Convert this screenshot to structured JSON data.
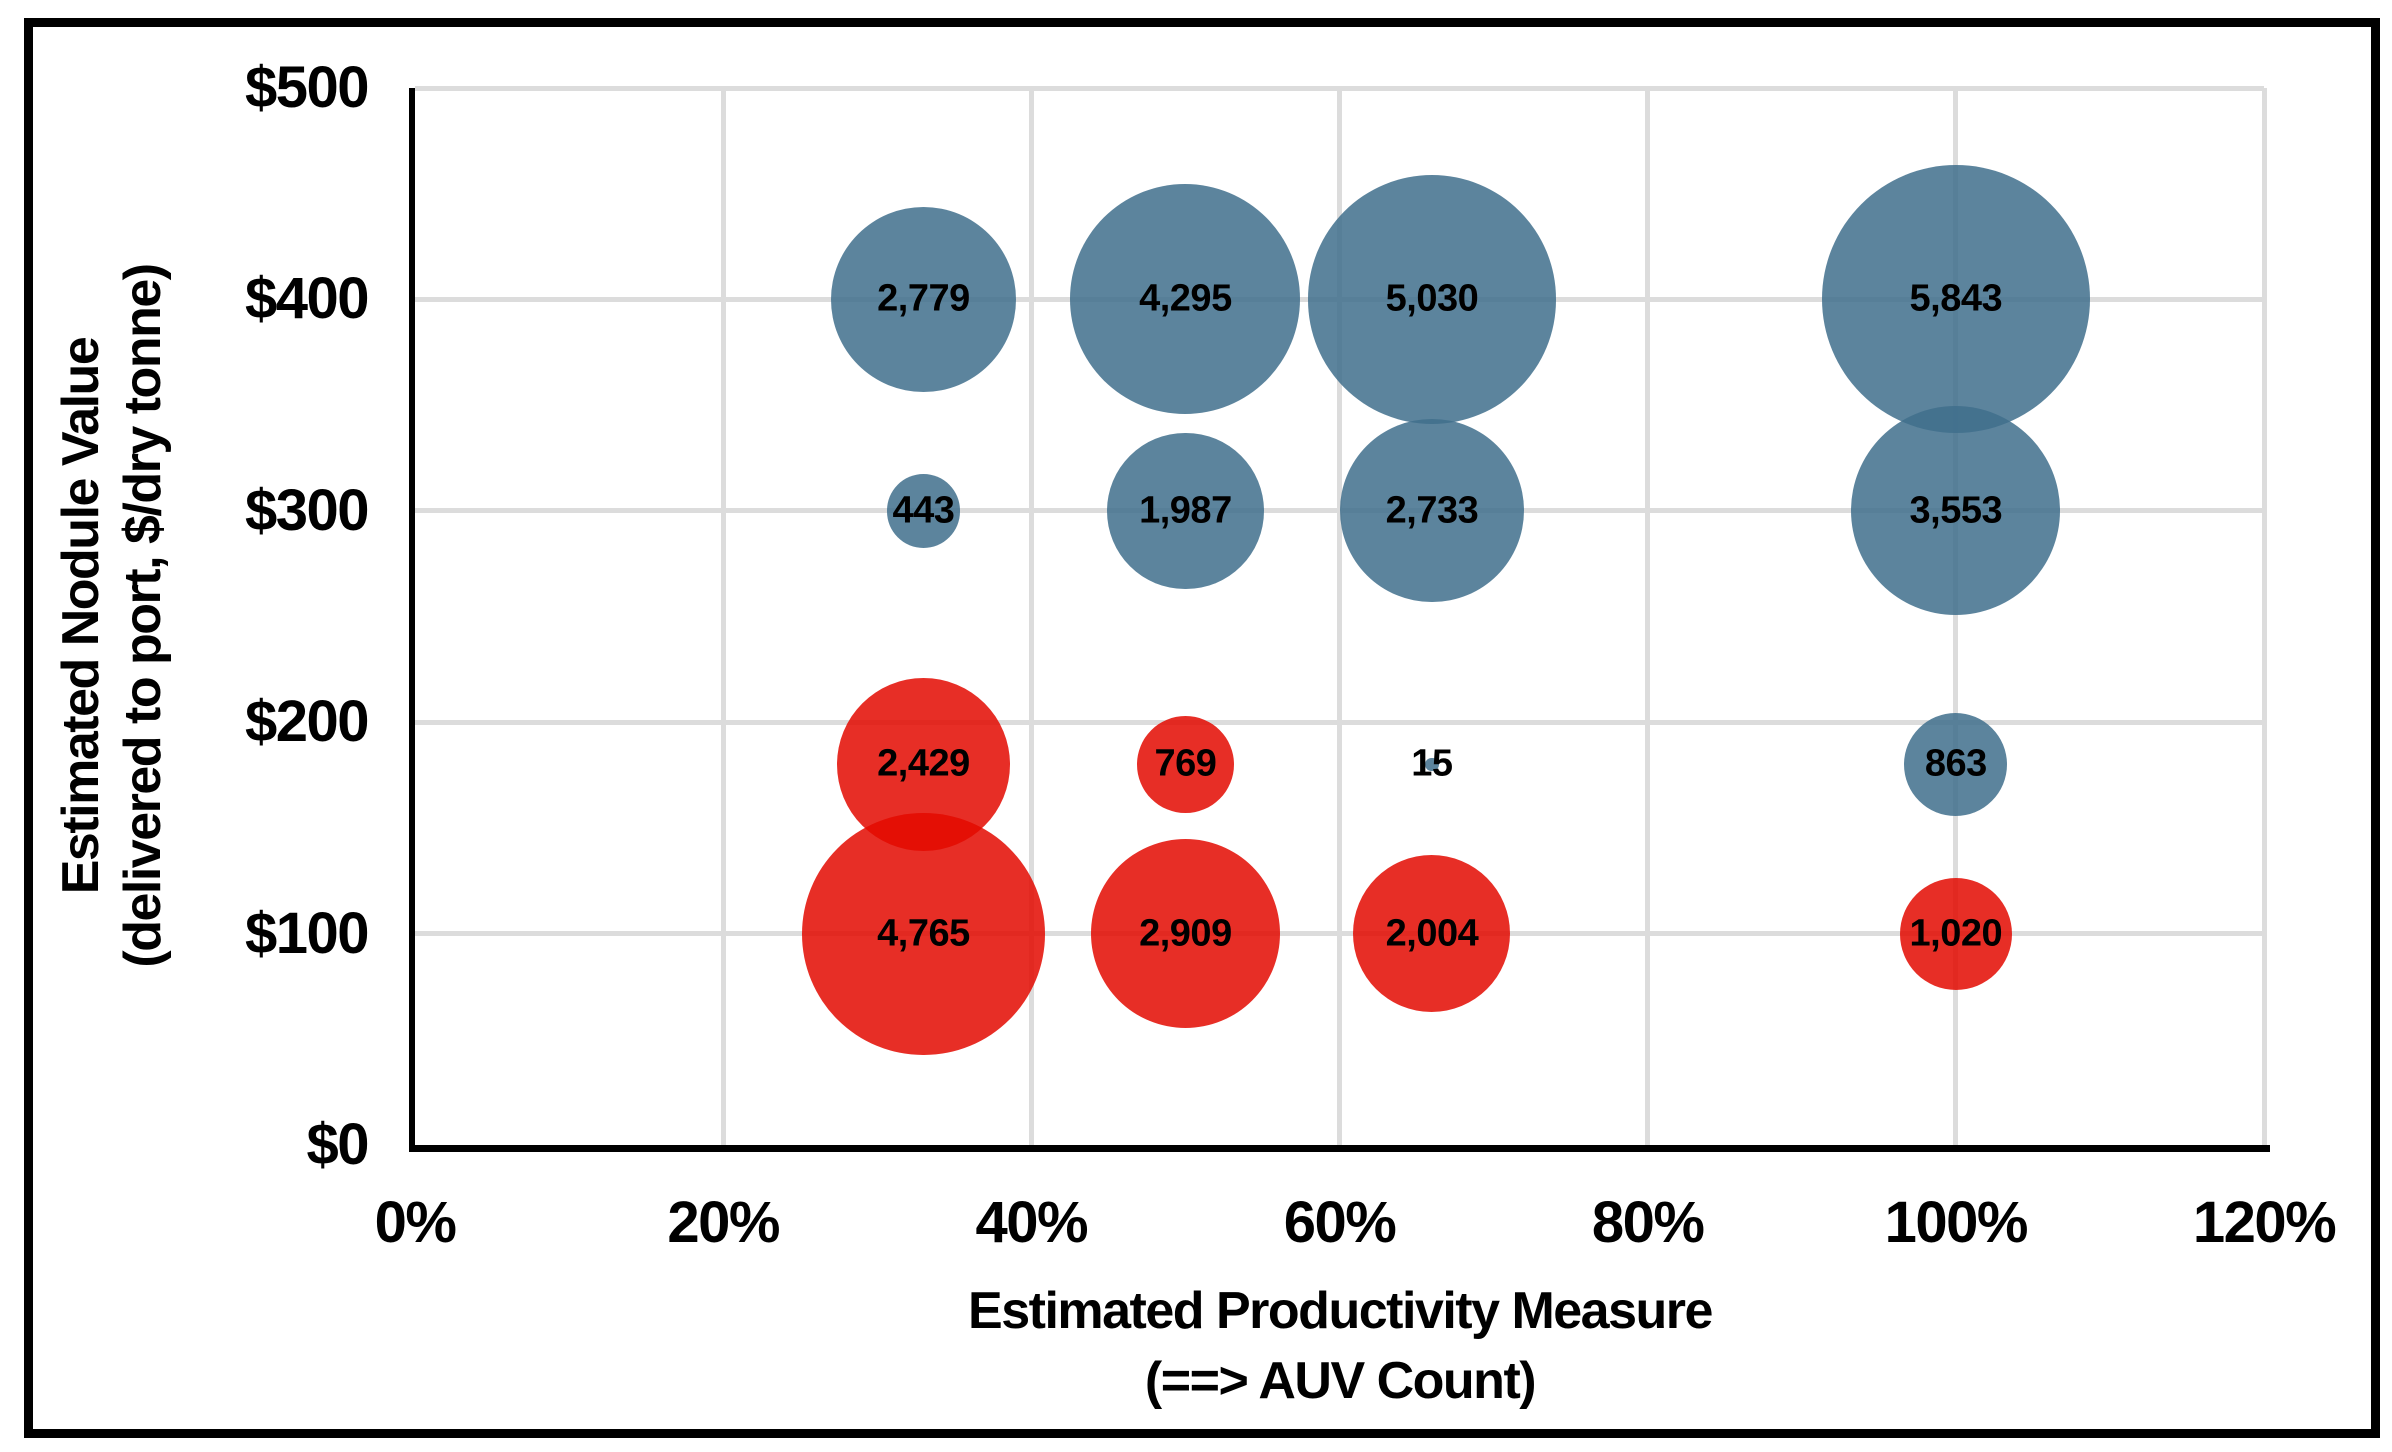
{
  "chart_data": {
    "type": "scatter",
    "subtype": "bubble",
    "title": "",
    "xlabel_line1": "Estimated Productivity Measure",
    "xlabel_line2": "(==> AUV Count)",
    "ylabel_line1": "Estimated Nodule Value",
    "ylabel_line2": "(delivered to port, $/dry tonne)",
    "xlim": [
      0,
      120
    ],
    "ylim": [
      0,
      500
    ],
    "grid": true,
    "legend": "none",
    "x_ticks": [
      {
        "label": "0%",
        "value": 0
      },
      {
        "label": "20%",
        "value": 20
      },
      {
        "label": "40%",
        "value": 40
      },
      {
        "label": "60%",
        "value": 60
      },
      {
        "label": "80%",
        "value": 80
      },
      {
        "label": "100%",
        "value": 100
      },
      {
        "label": "120%",
        "value": 120
      }
    ],
    "y_ticks": [
      {
        "label": "$0",
        "value": 0
      },
      {
        "label": "$100",
        "value": 100
      },
      {
        "label": "$200",
        "value": 200
      },
      {
        "label": "$300",
        "value": 300
      },
      {
        "label": "$400",
        "value": 400
      },
      {
        "label": "$500",
        "value": 500
      }
    ],
    "bubble_sizing": "area_proportional_to_value",
    "series": [
      {
        "name": "blue",
        "color": "#3F6E8C",
        "points": [
          {
            "x": 33,
            "y": 400,
            "value": 2779,
            "label": "2,779"
          },
          {
            "x": 50,
            "y": 400,
            "value": 4295,
            "label": "4,295"
          },
          {
            "x": 66,
            "y": 400,
            "value": 5030,
            "label": "5,030"
          },
          {
            "x": 100,
            "y": 400,
            "value": 5843,
            "label": "5,843"
          },
          {
            "x": 33,
            "y": 300,
            "value": 443,
            "label": "443"
          },
          {
            "x": 50,
            "y": 300,
            "value": 1987,
            "label": "1,987"
          },
          {
            "x": 66,
            "y": 300,
            "value": 2733,
            "label": "2,733"
          },
          {
            "x": 100,
            "y": 300,
            "value": 3553,
            "label": "3,553"
          },
          {
            "x": 66,
            "y": 180,
            "value": 15,
            "label": "15"
          },
          {
            "x": 100,
            "y": 180,
            "value": 863,
            "label": "863"
          }
        ]
      },
      {
        "name": "red",
        "color": "#E30900",
        "points": [
          {
            "x": 33,
            "y": 180,
            "value": 2429,
            "label": "2,429"
          },
          {
            "x": 50,
            "y": 180,
            "value": 769,
            "label": "769"
          },
          {
            "x": 33,
            "y": 100,
            "value": 4765,
            "label": "4,765"
          },
          {
            "x": 50,
            "y": 100,
            "value": 2909,
            "label": "2,909"
          },
          {
            "x": 66,
            "y": 100,
            "value": 2004,
            "label": "2,004"
          },
          {
            "x": 100,
            "y": 100,
            "value": 1020,
            "label": "1,020"
          }
        ]
      }
    ]
  },
  "colors": {
    "blue_bubble": "#3F6E8C",
    "red_bubble": "#E30900",
    "bubble_opacity": 0.85,
    "gridline": "#DCDCDC",
    "axis": "#000000",
    "frame_border": "#000000",
    "label_text": "#000000"
  }
}
